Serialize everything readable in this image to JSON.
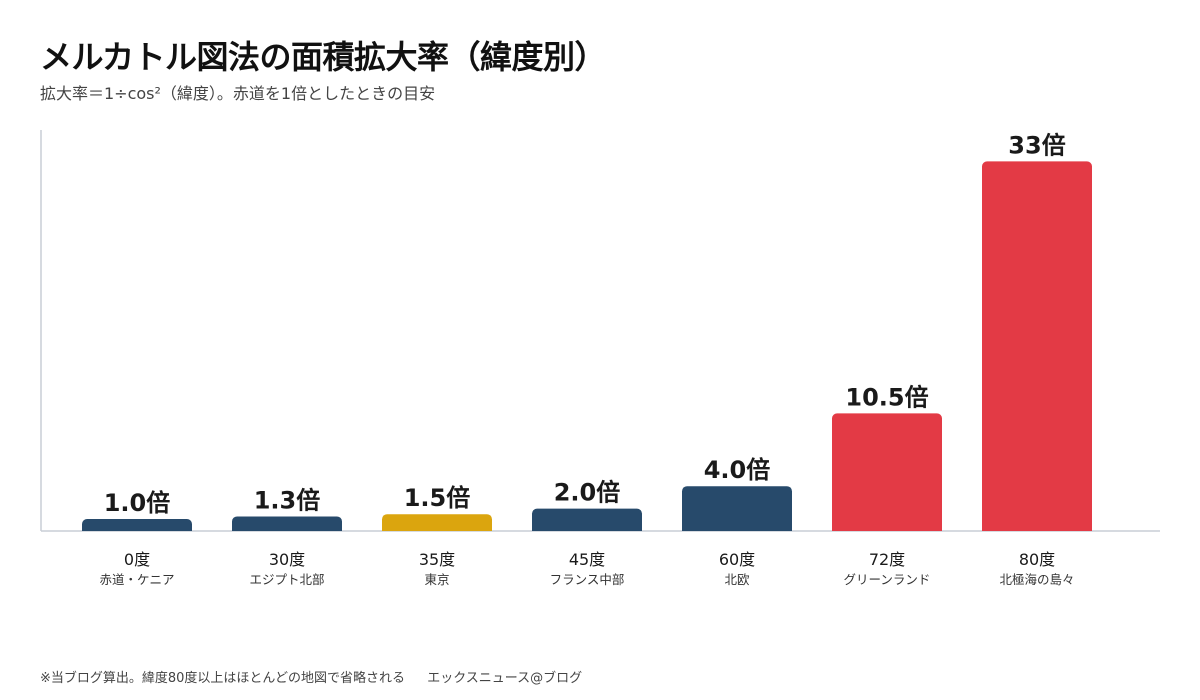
{
  "header": {
    "title": "メルカトル図法の面積拡大率（緯度別）",
    "subtitle": "拡大率＝1÷cos²（緯度）。赤道を1倍としたときの目安"
  },
  "footer": {
    "note": "※当ブログ算出。緯度80度以上はほとんどの地図で省略される",
    "brand": "エックスニュース@ブログ"
  },
  "colors": {
    "navy": "#274a6b",
    "gold": "#dba50e",
    "red": "#e33a45",
    "axis": "#c9ced6",
    "label": "#1a1a1a",
    "sublabel": "#333333"
  },
  "chart_data": {
    "type": "bar",
    "ylim": [
      0,
      35
    ],
    "grid": false,
    "categories": [
      "0度",
      "30度",
      "35度",
      "45度",
      "60度",
      "72度",
      "80度"
    ],
    "sublabels": [
      "赤道・ケニア",
      "エジプト北部",
      "東京",
      "フランス中部",
      "北欧",
      "グリーンランド",
      "北極海の島々"
    ],
    "values": [
      1.0,
      1.3,
      1.5,
      2.0,
      4.0,
      10.5,
      33
    ],
    "value_labels": [
      "1.0倍",
      "1.3倍",
      "1.5倍",
      "2.0倍",
      "4.0倍",
      "10.5倍",
      "33倍"
    ],
    "bar_colors": [
      "#274a6b",
      "#274a6b",
      "#dba50e",
      "#274a6b",
      "#274a6b",
      "#e33a45",
      "#e33a45"
    ]
  }
}
